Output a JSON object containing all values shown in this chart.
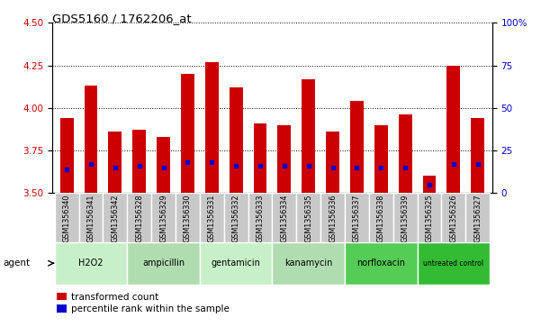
{
  "title": "GDS5160 / 1762206_at",
  "samples": [
    "GSM1356340",
    "GSM1356341",
    "GSM1356342",
    "GSM1356328",
    "GSM1356329",
    "GSM1356330",
    "GSM1356331",
    "GSM1356332",
    "GSM1356333",
    "GSM1356334",
    "GSM1356335",
    "GSM1356336",
    "GSM1356337",
    "GSM1356338",
    "GSM1356339",
    "GSM1356325",
    "GSM1356326",
    "GSM1356327"
  ],
  "transformed_count": [
    3.94,
    4.13,
    3.86,
    3.87,
    3.83,
    4.2,
    4.27,
    4.12,
    3.91,
    3.9,
    4.17,
    3.86,
    4.04,
    3.9,
    3.96,
    3.6,
    4.25,
    3.94
  ],
  "percentile_rank": [
    14,
    17,
    15,
    16,
    15,
    18,
    18,
    16,
    16,
    16,
    16,
    15,
    15,
    15,
    15,
    5,
    17,
    17
  ],
  "agents": [
    {
      "name": "H2O2",
      "start": 0,
      "end": 3,
      "color": "#c8f0c8"
    },
    {
      "name": "ampicillin",
      "start": 3,
      "end": 6,
      "color": "#b0ddb0"
    },
    {
      "name": "gentamicin",
      "start": 6,
      "end": 9,
      "color": "#c8f0c8"
    },
    {
      "name": "kanamycin",
      "start": 9,
      "end": 12,
      "color": "#b0ddb0"
    },
    {
      "name": "norfloxacin",
      "start": 12,
      "end": 15,
      "color": "#55cc55"
    },
    {
      "name": "untreated control",
      "start": 15,
      "end": 18,
      "color": "#33bb33"
    }
  ],
  "ylim": [
    3.5,
    4.5
  ],
  "y2lim": [
    0,
    100
  ],
  "yticks": [
    3.5,
    3.75,
    4.0,
    4.25,
    4.5
  ],
  "y2ticks": [
    0,
    25,
    50,
    75,
    100
  ],
  "bar_color": "#cc0000",
  "dot_color": "#0000cc",
  "bar_bottom": 3.5,
  "tick_label_color_left": "#cc0000",
  "tick_label_color_right": "#0000cc",
  "xtick_bg_color": "#c8c8c8",
  "xtick_border_color": "#ffffff"
}
